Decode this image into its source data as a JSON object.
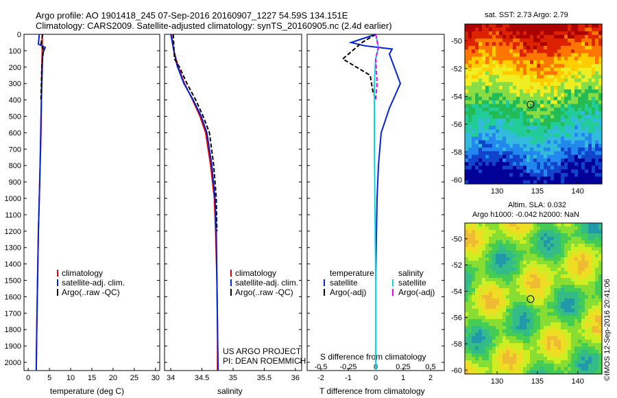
{
  "header": {
    "line1": "Argo profile: AO 1901418_245 07-Sep-2016 20160907_1227 54.59S 134.151E",
    "line2": "Climatology: CARS2009. Satellite-adjusted climatology: synTS_20160905.nc (2.4d earlier)"
  },
  "colors": {
    "climatology": "#dd0000",
    "satellite": "#0022dd",
    "argo": "#000000",
    "sat_salinity": "#00dddd",
    "argo_salinity": "#ee00ee"
  },
  "chart_data": [
    {
      "type": "line",
      "panel": "temperature",
      "xlabel": "temperature (deg C)",
      "xlim": [
        -1,
        31
      ],
      "xticks": [
        "0",
        "5",
        "10",
        "15",
        "20",
        "25",
        "30"
      ],
      "ylim": [
        0,
        2050
      ],
      "yticks": [
        "0",
        "100",
        "200",
        "300",
        "400",
        "500",
        "600",
        "700",
        "800",
        "900",
        "1000",
        "1100",
        "1200",
        "1300",
        "1400",
        "1500",
        "1600",
        "1700",
        "1800",
        "1900",
        "2000"
      ],
      "legend": [
        "climatology",
        "satellite-adj. clim.",
        "Argo(..raw -QC)"
      ],
      "series": [
        {
          "name": "climatology",
          "color": "#dd0000",
          "x": [
            3.3,
            3.3,
            3.2,
            3.1,
            3.0,
            2.8,
            2.6,
            2.4,
            2.2,
            2.0,
            1.9
          ],
          "y": [
            0,
            100,
            200,
            400,
            600,
            800,
            1000,
            1200,
            1500,
            1800,
            2050
          ]
        },
        {
          "name": "satellite-adj. clim.",
          "color": "#0022dd",
          "x": [
            2.6,
            2.4,
            4.0,
            3.4,
            3.2,
            3.0,
            2.8,
            2.6,
            2.4,
            2.2,
            2.0,
            1.9
          ],
          "y": [
            0,
            60,
            80,
            120,
            300,
            500,
            800,
            1000,
            1200,
            1500,
            1800,
            2050
          ]
        },
        {
          "name": "Argo(..raw -QC)",
          "color": "#000000",
          "dash": true,
          "x": [
            3.4,
            3.0,
            3.6,
            3.2,
            3.1,
            3.0
          ],
          "y": [
            0,
            60,
            90,
            200,
            300,
            400
          ]
        }
      ]
    },
    {
      "type": "line",
      "panel": "salinity",
      "xlabel": "salinity",
      "xlim": [
        33.9,
        36.1
      ],
      "xticks": [
        "34",
        "34.5",
        "35",
        "35.5",
        "36"
      ],
      "ylim": [
        0,
        2050
      ],
      "legend": [
        "climatology",
        "satellite-adj. clim.",
        "Argo(..raw -QC)"
      ],
      "annotation": [
        "US ARGO PROJECT",
        "PI: DEAN ROEMMICH"
      ],
      "series": [
        {
          "name": "climatology",
          "color": "#dd0000",
          "x": [
            34.01,
            34.05,
            34.12,
            34.22,
            34.35,
            34.47,
            34.56,
            34.64,
            34.7,
            34.72,
            34.74,
            34.75,
            34.75
          ],
          "y": [
            0,
            100,
            200,
            300,
            400,
            500,
            600,
            800,
            1000,
            1200,
            1500,
            1800,
            2050
          ]
        },
        {
          "name": "satellite-adj. clim.",
          "color": "#0022dd",
          "x": [
            34.0,
            34.05,
            34.1,
            34.21,
            34.36,
            34.49,
            34.58,
            34.66,
            34.71,
            34.73,
            34.74,
            34.75,
            34.76
          ],
          "y": [
            0,
            100,
            190,
            300,
            400,
            500,
            600,
            800,
            1000,
            1200,
            1500,
            1800,
            2050
          ]
        },
        {
          "name": "Argo(..raw -QC)",
          "color": "#000000",
          "dash": true,
          "x": [
            34.04,
            34.06,
            34.14,
            34.26,
            34.4,
            34.52,
            34.62,
            34.69,
            34.73,
            34.74
          ],
          "y": [
            0,
            150,
            200,
            300,
            400,
            500,
            600,
            800,
            1000,
            1200
          ]
        }
      ]
    },
    {
      "type": "line",
      "panel": "differences",
      "xlabel": "T difference from climatology",
      "xlabel_top": "S difference from climatology",
      "xlim": [
        -2.5,
        2.5
      ],
      "xticks": [
        "-2",
        "-1",
        "0",
        "1",
        "2"
      ],
      "xticks_top": [
        "-0.5",
        "-0.25",
        "0",
        "0.25",
        "0.5"
      ],
      "ylim": [
        0,
        2050
      ],
      "legend_left_title": "temperature",
      "legend_right_title": "salinity",
      "legend": [
        "satellite",
        "Argo(-adj)",
        "satellite",
        "Argo(-adj)"
      ],
      "series": [
        {
          "name": "satellite",
          "color": "#0022dd",
          "x": [
            0,
            -0.9,
            -0.4,
            0.6,
            0.5,
            0.9,
            0.5,
            0.2,
            0.1,
            0.05,
            0,
            0
          ],
          "y": [
            0,
            50,
            70,
            90,
            120,
            300,
            450,
            600,
            800,
            1000,
            1500,
            2050
          ]
        },
        {
          "name": "Argo(-adj)",
          "color": "#000000",
          "dash": true,
          "x": [
            0,
            -0.5,
            -1.2,
            -0.2,
            -0.1,
            0
          ],
          "y": [
            0,
            50,
            150,
            250,
            350,
            400
          ]
        },
        {
          "name": "satellite",
          "color": "#00dddd",
          "x": [
            0,
            0.1,
            0,
            -0.05,
            -0.05,
            -0.03,
            0,
            0
          ],
          "y": [
            0,
            80,
            150,
            300,
            700,
            1000,
            1500,
            2050
          ]
        },
        {
          "name": "Argo(-adj)",
          "color": "#ee00ee",
          "dash": true,
          "x": [
            0,
            0.1,
            0.0,
            0.05,
            0.0
          ],
          "y": [
            0,
            80,
            150,
            300,
            400
          ]
        }
      ]
    },
    {
      "type": "heatmap",
      "panel": "sst-map",
      "title": "sat. SST: 2.73  Argo: 2.79",
      "xticks": [
        "130",
        "135",
        "140"
      ],
      "yticks": [
        "-50",
        "-52",
        "-54",
        "-56",
        "-58",
        "-60"
      ],
      "xlim": [
        126,
        143
      ],
      "ylim": [
        -60.3,
        -48.8
      ],
      "marker": {
        "lon": 134.15,
        "lat": -54.59
      }
    },
    {
      "type": "heatmap",
      "panel": "sla-map",
      "title": "Altim. SLA: 0.032",
      "subtitle": "Argo h1000: -0.042 h2000: NaN",
      "xticks": [
        "130",
        "135",
        "140"
      ],
      "yticks": [
        "-50",
        "-52",
        "-54",
        "-56",
        "-58",
        "-60"
      ],
      "xlim": [
        126,
        143
      ],
      "ylim": [
        -60.3,
        -48.8
      ],
      "marker": {
        "lon": 134.15,
        "lat": -54.59
      }
    }
  ],
  "credit": "©IMOS 12-Sep-2016 20:41:06"
}
